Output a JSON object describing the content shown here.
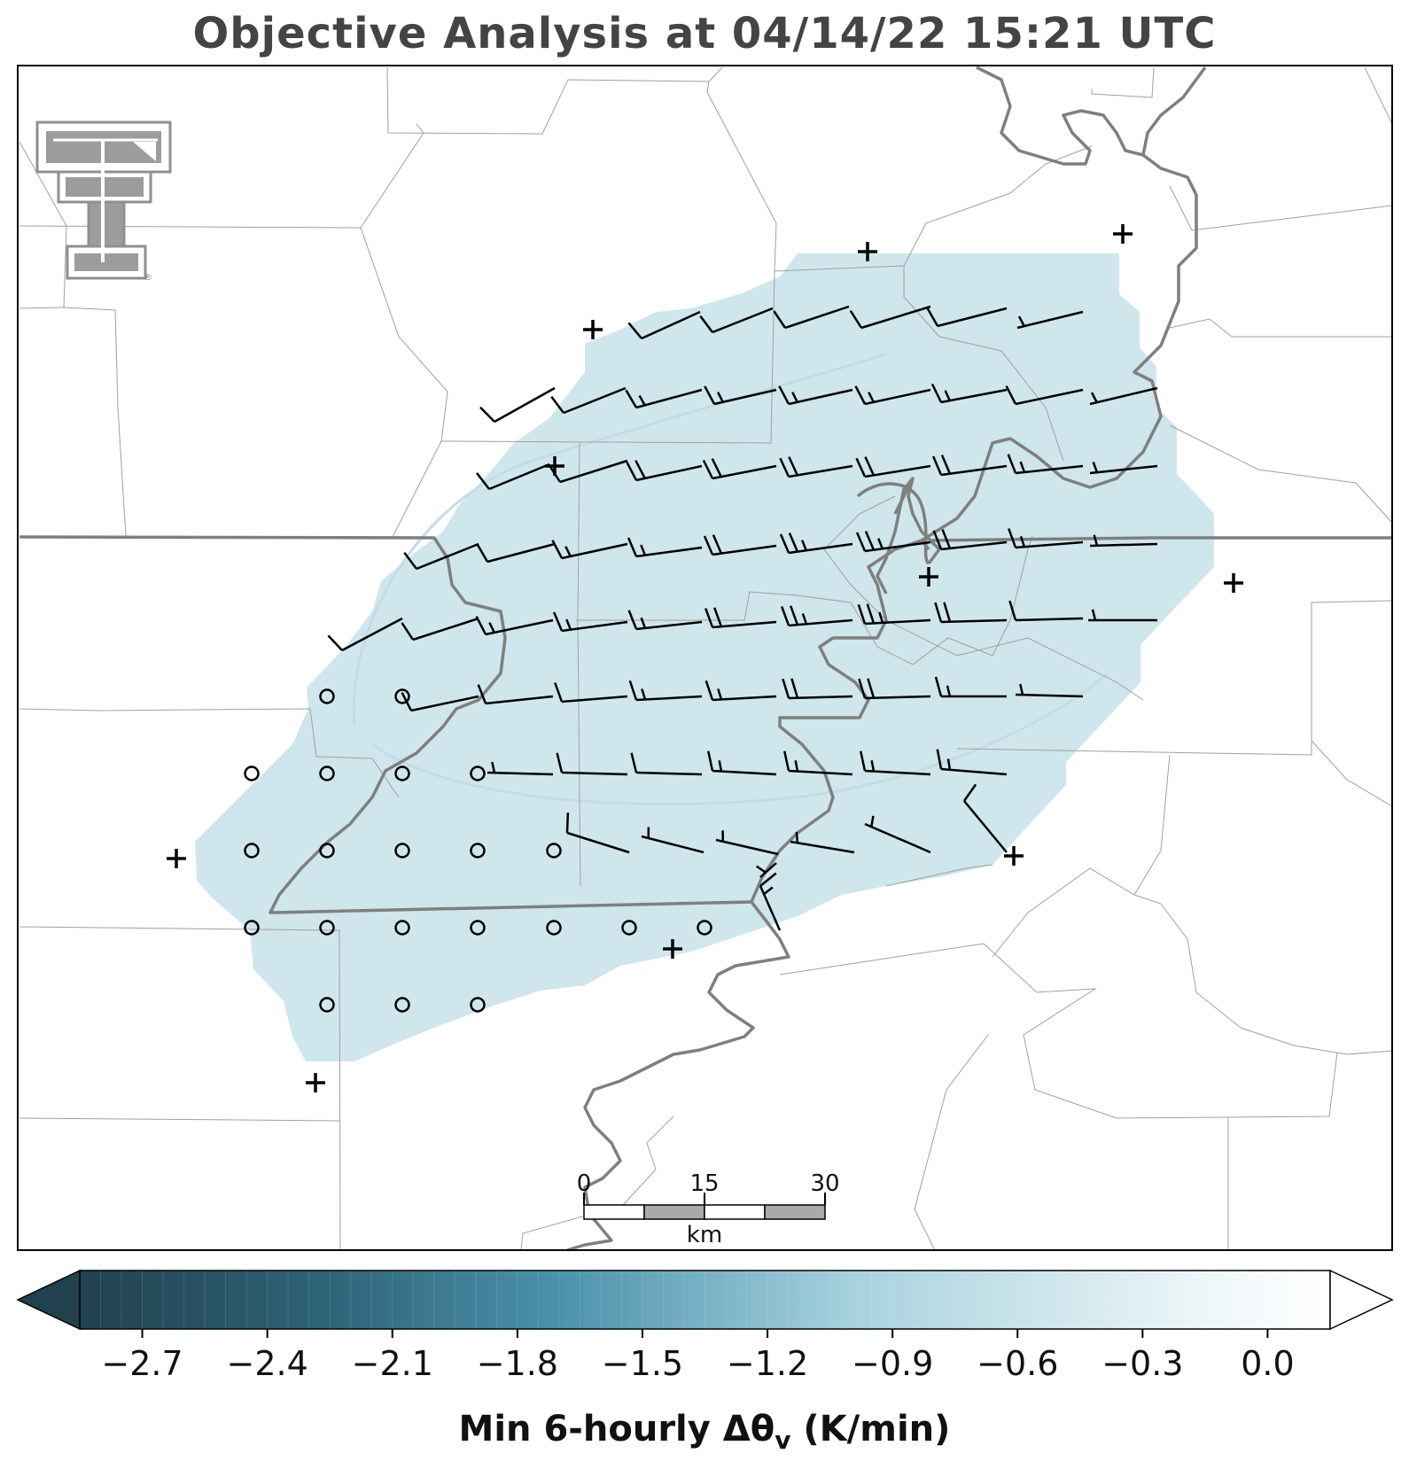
{
  "title": "Objective Analysis at 04/14/22 15:21 UTC",
  "logo": {
    "icon": "texas-tech-double-t-logo",
    "mark": "®"
  },
  "colors": {
    "analysis_fill": "#cfe6ec",
    "boundary_county": "#999999",
    "boundary_state": "#7a7a7a",
    "symbols": "#000000"
  },
  "scale_bar": {
    "labels": [
      "0",
      "15",
      "30"
    ],
    "unit": "km"
  },
  "colorbar": {
    "label_main": "Min 6-hourly Δθ",
    "label_sub": "v",
    "label_units": "(K/min)",
    "ticks": [
      "−2.7",
      "−2.4",
      "−2.1",
      "−1.8",
      "−1.5",
      "−1.2",
      "−0.9",
      "−0.6",
      "−0.3",
      "0.0"
    ],
    "range": [
      -2.85,
      0.15
    ],
    "colormap_stops": [
      "#21414f",
      "#2f6478",
      "#4a91aa",
      "#a8d2df",
      "#eef6f8",
      "#ffffff"
    ],
    "extend": "both"
  },
  "legend_symbols": {
    "station_missing": "+",
    "calm_wind": "○",
    "wind_barb": "barb"
  }
}
